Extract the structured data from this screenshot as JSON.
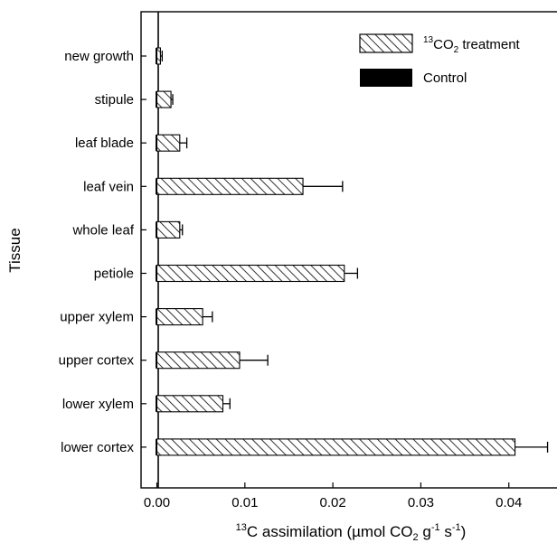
{
  "chart_data": {
    "type": "bar",
    "orientation": "horizontal",
    "categories": [
      "new growth",
      "stipule",
      "leaf blade",
      "leaf vein",
      "whole leaf",
      "petiole",
      "upper xylem",
      "upper cortex",
      "lower xylem",
      "lower cortex"
    ],
    "series": [
      {
        "name": "13CO2 treatment",
        "values": [
          0.0004,
          0.0016,
          0.0026,
          0.0166,
          0.0026,
          0.0213,
          0.0052,
          0.0094,
          0.0075,
          0.0407
        ],
        "errors": [
          0.0002,
          0.0002,
          0.0008,
          0.0045,
          0.0003,
          0.0015,
          0.0011,
          0.0032,
          0.0008,
          0.0037
        ],
        "pattern": "hatched"
      },
      {
        "name": "Control",
        "values": [
          0.0001,
          0.0001,
          0.0001,
          0.0001,
          0.0001,
          0.0001,
          0.0001,
          0.0001,
          0.0001,
          0.0001
        ],
        "color": "#000000"
      }
    ],
    "xlim": [
      -0.0018,
      0.0465
    ],
    "xticks": [
      0.0,
      0.01,
      0.02,
      0.03,
      0.04
    ],
    "xtick_labels": [
      "0.00",
      "0.01",
      "0.02",
      "0.03",
      "0.04"
    ],
    "xlabel_parts": {
      "sup1": "13",
      "base": "C assimilation (µmol CO",
      "sub": "2",
      "mid": " g",
      "sup2": "-1",
      "mid2": " s",
      "sup3": "-1",
      "end": ")"
    },
    "ylabel": "Tissue",
    "legend": {
      "placement": "top-right",
      "entries": [
        {
          "sup": "13",
          "base": "CO",
          "sub": "2",
          "rest": " treatment"
        },
        {
          "base": "Control"
        }
      ]
    },
    "grid": false
  }
}
